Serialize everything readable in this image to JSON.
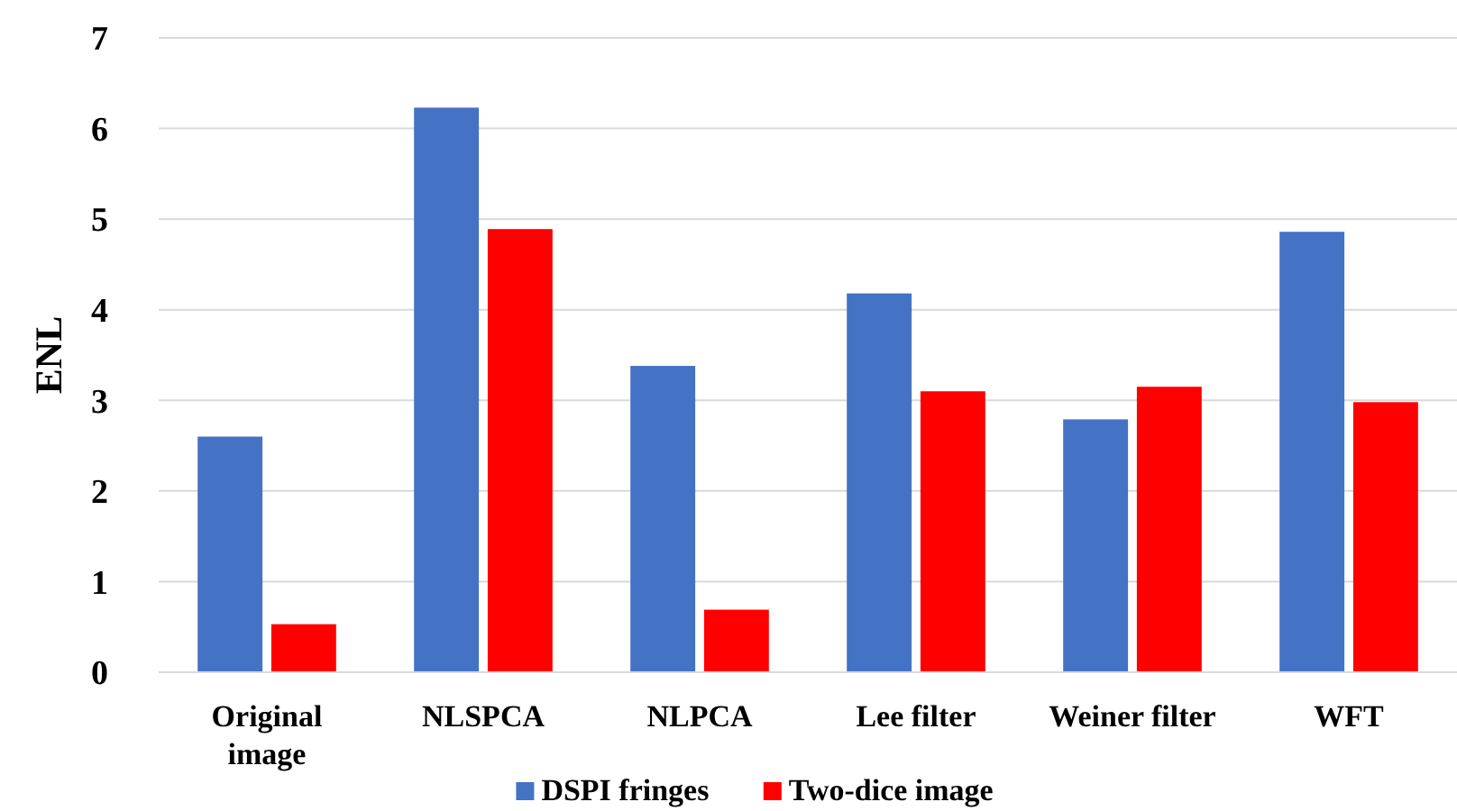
{
  "chart_data": {
    "type": "bar",
    "ylabel": "ENL",
    "categories": [
      "Original image",
      "NLSPCA",
      "NLPCA",
      "Lee filter",
      "Weiner filter",
      "WFT"
    ],
    "series": [
      {
        "name": "DSPI fringes",
        "color": "#4472c4",
        "values": [
          2.6,
          6.23,
          3.38,
          4.18,
          2.79,
          4.86
        ]
      },
      {
        "name": "Two-dice image",
        "color": "#ff0000",
        "values": [
          0.53,
          4.89,
          0.69,
          3.1,
          3.15,
          2.98
        ]
      }
    ],
    "ylim": [
      0,
      7
    ],
    "yticks": [
      0,
      1,
      2,
      3,
      4,
      5,
      6,
      7
    ],
    "grid": "y",
    "legend": "bottom"
  }
}
